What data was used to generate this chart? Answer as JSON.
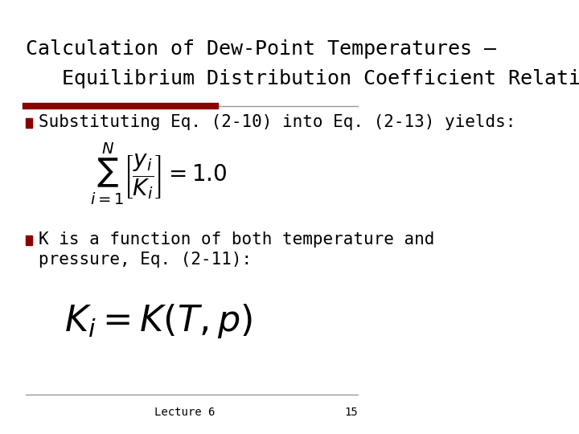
{
  "title_line1": "Calculation of Dew-Point Temperatures –",
  "title_line2": "   Equilibrium Distribution Coefficient Relationship",
  "title_fontsize": 18,
  "title_color": "#000000",
  "title_font": "DejaVu Sans",
  "red_bar_color": "#8B0000",
  "bg_color": "#FFFFFF",
  "bullet_color": "#8B0000",
  "bullet1_text": "Substituting Eq. (2-10) into Eq. (2-13) yields:",
  "bullet2_line1": "K is a function of both temperature and",
  "bullet2_line2": "pressure, Eq. (2-11):",
  "eq1_latex": "\\sum_{i=1}^{N}\\left[\\frac{y_i}{K_i}\\right]=1.0",
  "eq2_latex": "K_i=K(T,p)",
  "footer_text": "Lecture 6",
  "footer_page": "15",
  "footer_fontsize": 10,
  "body_fontsize": 15,
  "eq1_fontsize": 18,
  "eq2_fontsize": 26
}
